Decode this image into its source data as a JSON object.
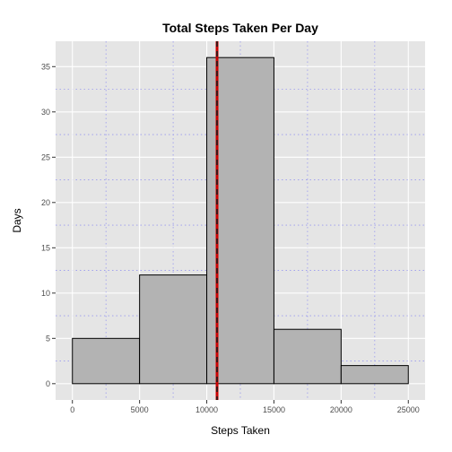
{
  "chart_data": {
    "type": "bar",
    "title": "Total Steps Taken Per Day",
    "xlabel": "Steps Taken",
    "ylabel": "Days",
    "bins": [
      {
        "x0": 0,
        "x1": 5000,
        "count": 5
      },
      {
        "x0": 5000,
        "x1": 10000,
        "count": 12
      },
      {
        "x0": 10000,
        "x1": 15000,
        "count": 36
      },
      {
        "x0": 15000,
        "x1": 20000,
        "count": 6
      },
      {
        "x0": 20000,
        "x1": 25000,
        "count": 2
      }
    ],
    "xlim": [
      -1250,
      26250
    ],
    "ylim": [
      -1.8,
      37.8
    ],
    "x_ticks": [
      0,
      5000,
      10000,
      15000,
      20000,
      25000
    ],
    "x_tick_labels": [
      "0",
      "5000",
      "10000",
      "15000",
      "20000",
      "25000"
    ],
    "y_ticks": [
      0,
      5,
      10,
      15,
      20,
      25,
      30,
      35
    ],
    "y_tick_labels": [
      "0",
      "5",
      "10",
      "15",
      "20",
      "25",
      "30",
      "35"
    ],
    "x_minor_ticks": [
      2500,
      7500,
      12500,
      17500,
      22500
    ],
    "y_minor_ticks": [
      2.5,
      7.5,
      12.5,
      17.5,
      22.5,
      27.5,
      32.5
    ],
    "mean_line": 10766,
    "median_line": 10765,
    "grid": true,
    "colors": {
      "panel_background": "#e5e5e5",
      "major_grid": "#ffffff",
      "minor_grid": "#9999ee",
      "bar_fill": "#b3b3b3",
      "bar_stroke": "#000000",
      "mean_line": "#cc0000",
      "median_line": "#1a1a1a"
    }
  }
}
